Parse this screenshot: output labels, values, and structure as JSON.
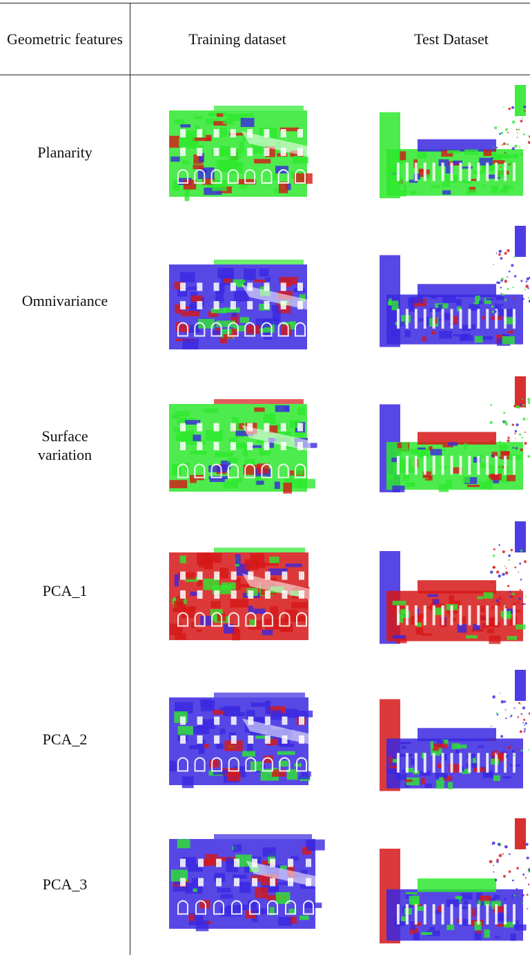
{
  "header": {
    "feature_col": "Geometric features",
    "train_col": "Training dataset",
    "test_col": "Test Dataset"
  },
  "rows": [
    {
      "label": "Planarity",
      "train_img": "training-pointcloud-planarity",
      "test_img": "test-pointcloud-planarity",
      "dominant": "#2ee82e"
    },
    {
      "label": "Omnivariance",
      "train_img": "training-pointcloud-omnivariance",
      "test_img": "test-pointcloud-omnivariance",
      "dominant": "#3a28e0"
    },
    {
      "label": "Surface variation",
      "train_img": "training-pointcloud-surface-variation",
      "test_img": "test-pointcloud-surface-variation",
      "dominant": "#2ee82e"
    },
    {
      "label": "PCA_1",
      "train_img": "training-pointcloud-pca1",
      "test_img": "test-pointcloud-pca1",
      "dominant": "#d61818"
    },
    {
      "label": "PCA_2",
      "train_img": "training-pointcloud-pca2",
      "test_img": "test-pointcloud-pca2",
      "dominant": "#3a28e0"
    },
    {
      "label": "PCA_3",
      "train_img": "training-pointcloud-pca3",
      "test_img": "test-pointcloud-pca3",
      "dominant": "#3a28e0"
    }
  ],
  "colors": {
    "red": "#d61818",
    "green": "#2ee82e",
    "blue": "#3a28e0",
    "rule": "#222222"
  }
}
